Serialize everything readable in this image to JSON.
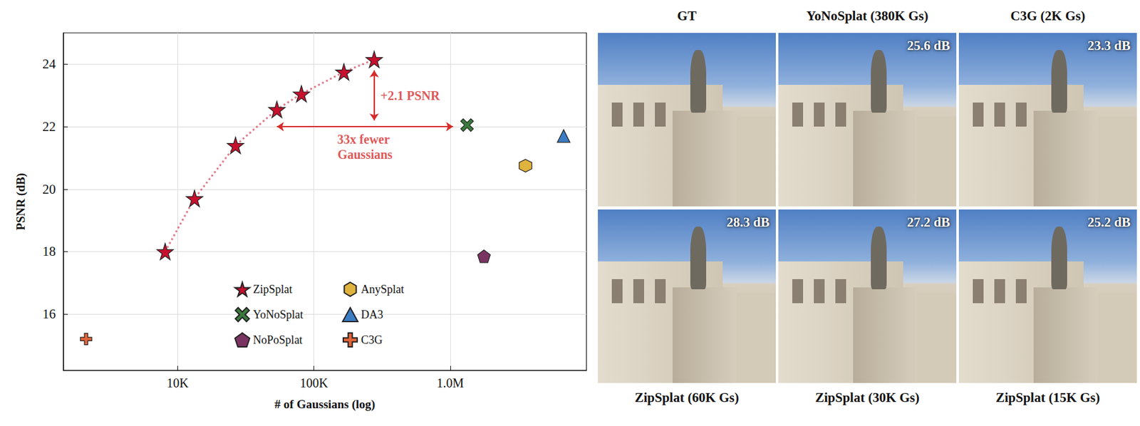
{
  "chart_data": {
    "type": "scatter",
    "xlabel": "# of Gaussians (log)",
    "ylabel": "PSNR (dB)",
    "log": "x",
    "grid": true,
    "legend": "lower center",
    "xlim": [
      1450,
      10000000
    ],
    "xticks": [
      {
        "value": 10000,
        "label": "10K"
      },
      {
        "value": 100000,
        "label": "100K"
      },
      {
        "value": 1000000,
        "label": "1.0M"
      }
    ],
    "ylim": [
      14.2,
      25
    ],
    "yticks": [
      16,
      18,
      20,
      22,
      24
    ],
    "series": [
      {
        "name": "ZipSplat",
        "type": "line",
        "line_style": "dotted",
        "marker": "star",
        "color": "#c8102e",
        "x": [
          8100,
          13300,
          26600,
          53500,
          81000,
          166000,
          277000
        ],
        "values": [
          18.0,
          19.7,
          21.4,
          22.55,
          23.05,
          23.75,
          24.15
        ]
      },
      {
        "name": "YoNoSplat",
        "type": "scatter",
        "marker": "x",
        "color": "#3a7a3e",
        "x": [
          1330000
        ],
        "values": [
          22.05
        ]
      },
      {
        "name": "NoPoSplat",
        "type": "scatter",
        "marker": "pentagon",
        "color": "#7a3462",
        "x": [
          1770000
        ],
        "values": [
          17.85
        ]
      },
      {
        "name": "AnySplat",
        "type": "scatter",
        "marker": "hexagon",
        "color": "#e0b33e",
        "x": [
          3570000
        ],
        "values": [
          20.75
        ]
      },
      {
        "name": "DA3",
        "type": "scatter",
        "marker": "triangle",
        "color": "#3b7cc4",
        "x": [
          6800000
        ],
        "values": [
          21.7
        ]
      },
      {
        "name": "C3G",
        "type": "scatter",
        "marker": "plus",
        "color": "#e0643a",
        "x": [
          2130
        ],
        "values": [
          15.2
        ]
      }
    ],
    "annotations": [
      {
        "text": "+2.1 PSNR",
        "color": "#d62b2b",
        "arrow": {
          "x": [
            277000,
            277000
          ],
          "y": [
            22.2,
            23.8
          ]
        }
      },
      {
        "text": "33x fewer Gaussians",
        "color": "#d62b2b",
        "arrow": {
          "x": [
            53500,
            1050000
          ],
          "y": [
            22,
            22
          ]
        }
      }
    ]
  },
  "panels": {
    "top": [
      {
        "caption": "GT"
      },
      {
        "caption": "YoNoSplat (380K Gs)",
        "score": "25.6 dB"
      },
      {
        "caption": "C3G (2K Gs)",
        "score": "23.3 dB"
      }
    ],
    "bottom": [
      {
        "caption": "ZipSplat (60K Gs)",
        "score": "28.3 dB"
      },
      {
        "caption": "ZipSplat (30K Gs)",
        "score": "27.2 dB"
      },
      {
        "caption": "ZipSplat (15K Gs)",
        "score": "25.2 dB"
      }
    ]
  }
}
